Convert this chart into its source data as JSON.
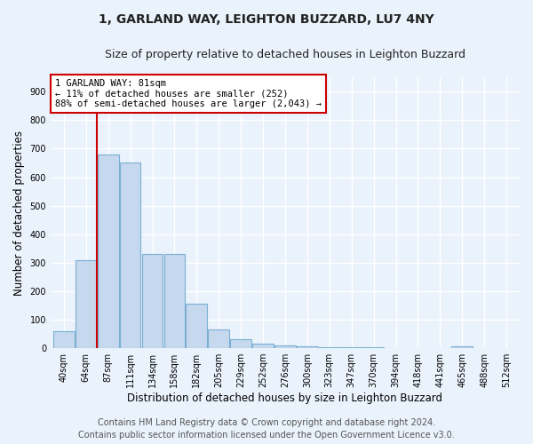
{
  "title": "1, GARLAND WAY, LEIGHTON BUZZARD, LU7 4NY",
  "subtitle": "Size of property relative to detached houses in Leighton Buzzard",
  "xlabel": "Distribution of detached houses by size in Leighton Buzzard",
  "ylabel": "Number of detached properties",
  "bar_color": "#c5d8ed",
  "bar_edge_color": "#7bafd4",
  "categories": [
    "40sqm",
    "64sqm",
    "87sqm",
    "111sqm",
    "134sqm",
    "158sqm",
    "182sqm",
    "205sqm",
    "229sqm",
    "252sqm",
    "276sqm",
    "300sqm",
    "323sqm",
    "347sqm",
    "370sqm",
    "394sqm",
    "418sqm",
    "441sqm",
    "465sqm",
    "488sqm",
    "512sqm"
  ],
  "values": [
    60,
    310,
    680,
    650,
    330,
    330,
    155,
    65,
    30,
    15,
    10,
    5,
    3,
    2,
    2,
    1,
    1,
    1,
    5,
    1,
    1
  ],
  "ylim": [
    0,
    950
  ],
  "yticks": [
    0,
    100,
    200,
    300,
    400,
    500,
    600,
    700,
    800,
    900
  ],
  "annotation_text": "1 GARLAND WAY: 81sqm\n← 11% of detached houses are smaller (252)\n88% of semi-detached houses are larger (2,043) →",
  "annotation_box_color": "#ffffff",
  "annotation_box_edge": "#cc0000",
  "vline_color": "#cc0000",
  "footer_line1": "Contains HM Land Registry data © Crown copyright and database right 2024.",
  "footer_line2": "Contains public sector information licensed under the Open Government Licence v3.0.",
  "bg_color": "#eaf2fb",
  "plot_bg_color": "#eaf2fb",
  "grid_color": "#ffffff",
  "title_fontsize": 10,
  "subtitle_fontsize": 9,
  "tick_fontsize": 7,
  "label_fontsize": 8.5,
  "footer_fontsize": 7
}
